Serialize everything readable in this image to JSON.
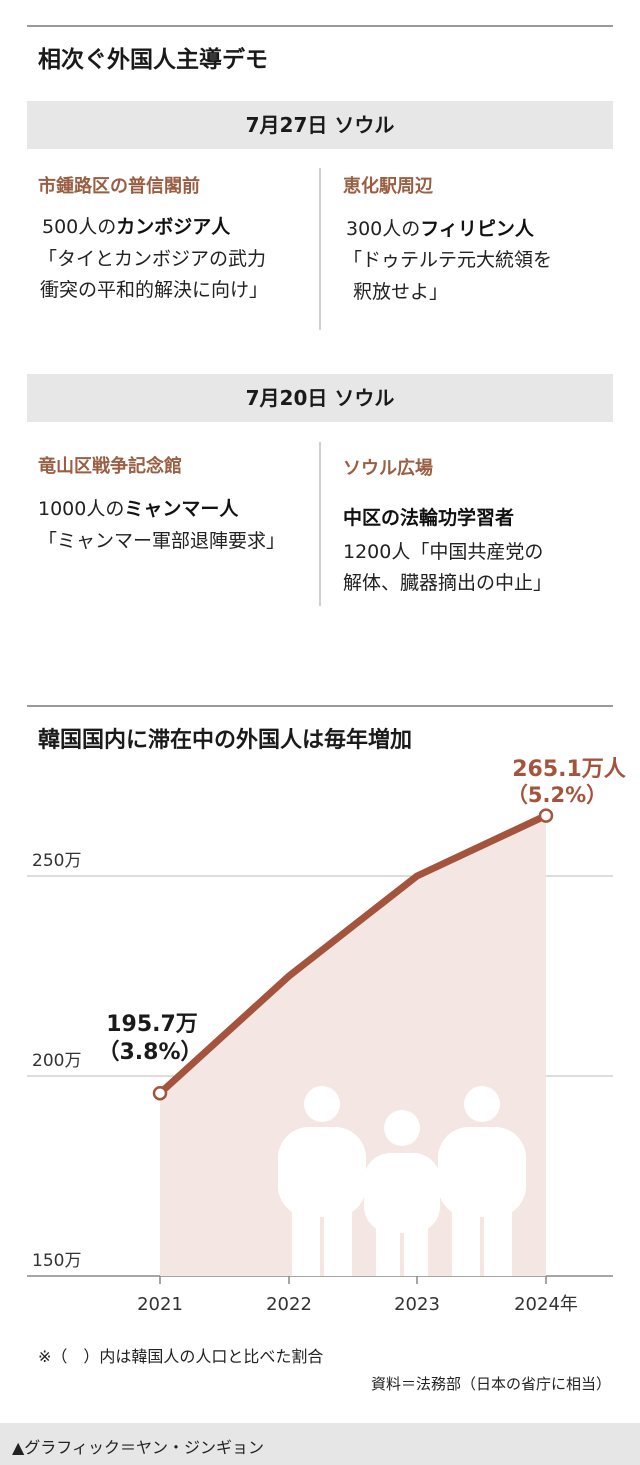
{
  "demo_section": {
    "title": "相次ぐ外国人主導デモ",
    "events": [
      {
        "date": "7月27日 ソウル",
        "left": {
          "location": "市鍾路区の普信閣前",
          "count": "500人の",
          "group": "カンボジア人",
          "demand": [
            "「タイとカンボジアの武力",
            "衝突の平和的解決に向け」"
          ]
        },
        "right": {
          "location": "恵化駅周辺",
          "count": "300人の",
          "group": "フィリピン人",
          "demand": [
            "「ドゥテルテ元大統領を",
            "釈放せよ」"
          ]
        }
      },
      {
        "date": "7月20日 ソウル",
        "left": {
          "location": "竜山区戦争記念館",
          "count": "1000人の",
          "group": "ミャンマー人",
          "demand": [
            "「ミャンマー軍部退陣要求」"
          ]
        },
        "right": {
          "location": "ソウル広場",
          "group": "中区の法輪功学習者",
          "demand": [
            "1200人「中国共産党の",
            "解体、臓器摘出の中止」"
          ]
        }
      }
    ]
  },
  "chart_data": {
    "type": "area",
    "title": "韓国国内に滞在中の外国人は毎年増加",
    "x": [
      "2021",
      "2022",
      "2023",
      "2024年"
    ],
    "values": [
      195.7,
      225,
      250,
      265.1
    ],
    "ylim": [
      150,
      270
    ],
    "yticks": [
      150,
      200,
      250
    ],
    "ytick_labels": [
      "150万",
      "200万",
      "250万"
    ],
    "grid": true,
    "annotations": [
      {
        "point": 0,
        "value_label": "195.7万",
        "share_label": "（3.8%）"
      },
      {
        "point": 3,
        "value_label": "265.1万人",
        "share_label": "（5.2%）"
      }
    ],
    "colors": {
      "line": "#a4543c",
      "fill": "#f3e6e3",
      "accent_text": "#a4543c",
      "grid": "#bbbbbb",
      "people": "#ffffff"
    }
  },
  "notes": {
    "parentheses_note": "※（　）内は韓国人の人口と比べた割合",
    "source": "資料＝法務部（日本の省庁に相当）"
  },
  "footer": {
    "credit": "▲グラフィック＝ヤン・ジンギョン"
  }
}
